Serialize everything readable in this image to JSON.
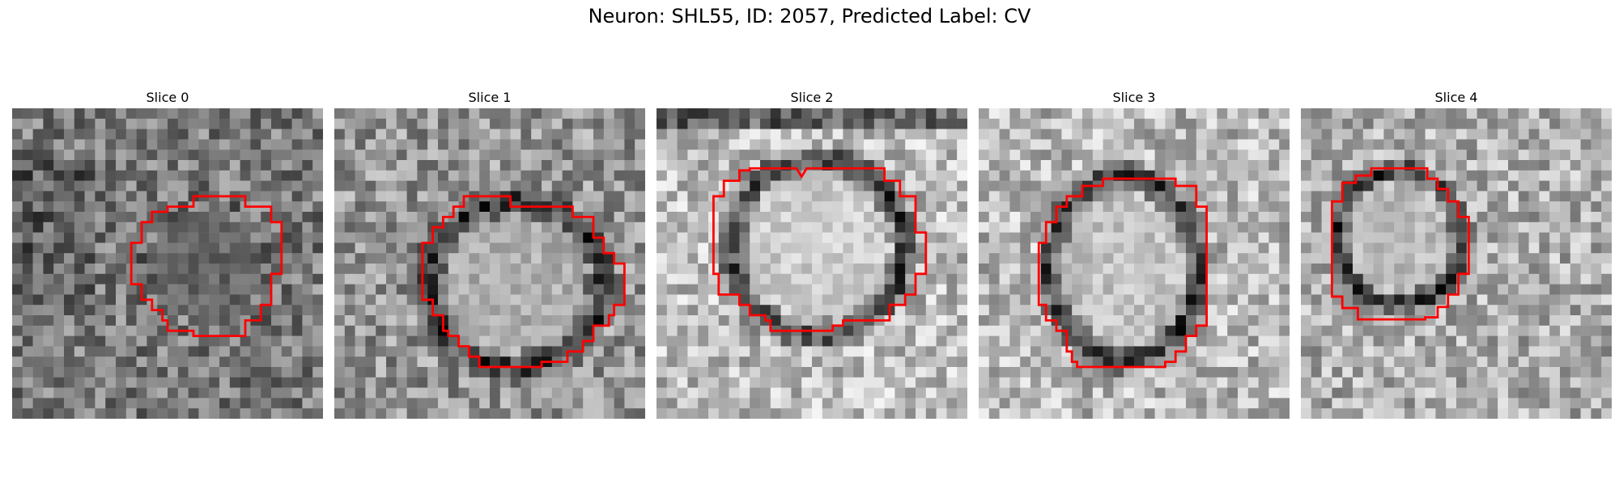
{
  "figure": {
    "title": "Neuron: SHL55, ID: 2057, Predicted Label: CV"
  },
  "colors": {
    "contour": "#ff0000"
  },
  "panels": [
    {
      "title": "Slice 0",
      "seed": 11,
      "base": 0.48,
      "ring_strength": 0.05,
      "inner_level": 0.3
    },
    {
      "title": "Slice 1",
      "seed": 23,
      "base": 0.58,
      "ring_strength": 0.4,
      "inner_level": 0.78
    },
    {
      "title": "Slice 2",
      "seed": 37,
      "base": 0.74,
      "ring_strength": 0.55,
      "inner_level": 0.86
    },
    {
      "title": "Slice 3",
      "seed": 41,
      "base": 0.72,
      "ring_strength": 0.6,
      "inner_level": 0.8
    },
    {
      "title": "Slice 4",
      "seed": 53,
      "base": 0.68,
      "ring_strength": 0.55,
      "inner_level": 0.8
    }
  ]
}
